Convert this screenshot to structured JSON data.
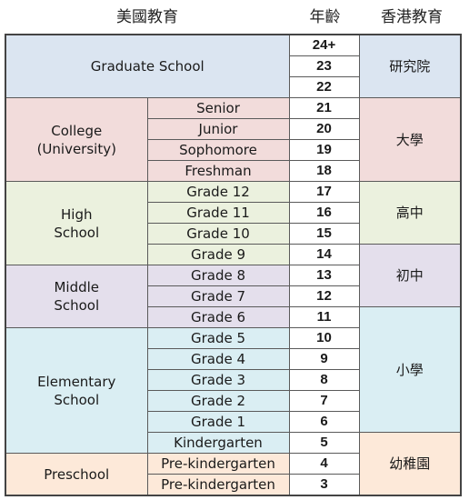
{
  "headers": {
    "us": "美國教育",
    "age": "年齡",
    "hk": "香港教育"
  },
  "colors": {
    "graduate": "#dbe5f1",
    "college": "#f2dcdb",
    "high": "#ebf1de",
    "middle": "#e4dfec",
    "elementary": "#daeef3",
    "preschool": "#fde9d9"
  },
  "us_levels": {
    "graduate": "Graduate School",
    "college": [
      "College",
      "(University)"
    ],
    "high": [
      "High",
      "School"
    ],
    "middle": [
      "Middle",
      "School"
    ],
    "elementary": [
      "Elementary",
      "School"
    ],
    "preschool": "Preschool"
  },
  "rows": [
    {
      "grade": "",
      "age": "24+"
    },
    {
      "grade": "",
      "age": "23"
    },
    {
      "grade": "",
      "age": "22"
    },
    {
      "grade": "Senior",
      "age": "21"
    },
    {
      "grade": "Junior",
      "age": "20"
    },
    {
      "grade": "Sophomore",
      "age": "19"
    },
    {
      "grade": "Freshman",
      "age": "18"
    },
    {
      "grade": "Grade 12",
      "age": "17"
    },
    {
      "grade": "Grade 11",
      "age": "16"
    },
    {
      "grade": "Grade 10",
      "age": "15"
    },
    {
      "grade": "Grade 9",
      "age": "14"
    },
    {
      "grade": "Grade 8",
      "age": "13"
    },
    {
      "grade": "Grade 7",
      "age": "12"
    },
    {
      "grade": "Grade 6",
      "age": "11"
    },
    {
      "grade": "Grade 5",
      "age": "10"
    },
    {
      "grade": "Grade 4",
      "age": "9"
    },
    {
      "grade": "Grade 3",
      "age": "8"
    },
    {
      "grade": "Grade 2",
      "age": "7"
    },
    {
      "grade": "Grade 1",
      "age": "6"
    },
    {
      "grade": "Kindergarten",
      "age": "5"
    },
    {
      "grade": "Pre-kindergarten",
      "age": "4"
    },
    {
      "grade": "Pre-kindergarten",
      "age": "3"
    }
  ],
  "hk_levels": {
    "graduate": "研究院",
    "university": "大學",
    "senior_secondary": "高中",
    "junior_secondary": "初中",
    "primary": "小學",
    "kindergarten": "幼稚園"
  }
}
